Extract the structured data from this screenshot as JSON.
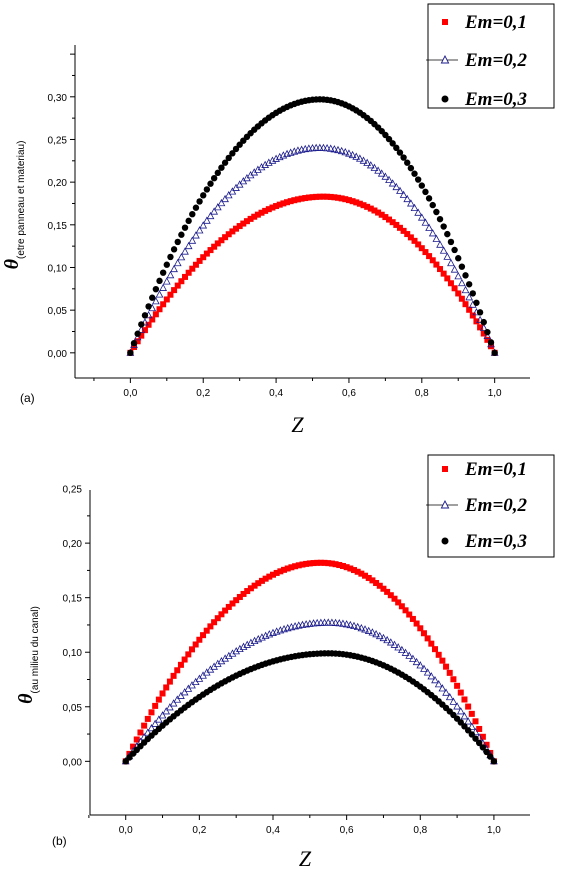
{
  "chart_data": [
    {
      "type": "scatter",
      "panel_label": "(a)",
      "xlabel": "Z",
      "ylabel_symbol": "θ",
      "ylabel_subscript": "(etre panneau et materiau)",
      "xlim": [
        -0.15,
        1.1
      ],
      "ylim": [
        -0.03,
        0.36
      ],
      "x_ticks": [
        "0,0",
        "0,2",
        "0,4",
        "0,6",
        "0,8",
        "1,0"
      ],
      "y_ticks": [
        "0,00",
        "0,05",
        "0,10",
        "0,15",
        "0,20",
        "0,25",
        "0,30"
      ],
      "legend_position": "top-right",
      "series": [
        {
          "name": "Em=0,1",
          "marker": "square",
          "color": "#ff0000",
          "peak": 0.183,
          "peak_x": 0.53
        },
        {
          "name": "Em=0,2",
          "marker": "open-triangle",
          "color": "#1a1a8c",
          "peak": 0.24,
          "peak_x": 0.52
        },
        {
          "name": "Em=0,3",
          "marker": "circle",
          "color": "#000000",
          "peak": 0.297,
          "peak_x": 0.52
        }
      ]
    },
    {
      "type": "scatter",
      "panel_label": "(b)",
      "xlabel": "Z",
      "ylabel_symbol": "θ",
      "ylabel_subscript": "(au milieu du canal)",
      "xlim": [
        -0.1,
        1.1
      ],
      "ylim": [
        -0.05,
        0.25
      ],
      "x_ticks": [
        "0,0",
        "0,2",
        "0,4",
        "0,6",
        "0,8",
        "1,0"
      ],
      "y_ticks": [
        "0,00",
        "0,05",
        "0,10",
        "0,15",
        "0,20",
        "0,25"
      ],
      "legend_position": "top-right",
      "series": [
        {
          "name": "Em=0,1",
          "marker": "square",
          "color": "#ff0000",
          "peak": 0.182,
          "peak_x": 0.53
        },
        {
          "name": "Em=0,2",
          "marker": "open-triangle",
          "color": "#1a1a8c",
          "peak": 0.127,
          "peak_x": 0.55
        },
        {
          "name": "Em=0,3",
          "marker": "circle",
          "color": "#000000",
          "peak": 0.099,
          "peak_x": 0.55
        }
      ]
    }
  ]
}
